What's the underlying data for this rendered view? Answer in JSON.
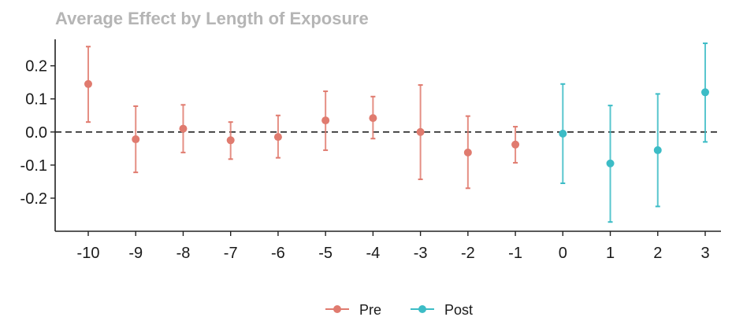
{
  "chart_data": {
    "type": "scatter",
    "title": "Average Effect by Length of Exposure",
    "xlabel": "",
    "ylabel": "",
    "ylim": [
      -0.3,
      0.28
    ],
    "y_ticks": [
      -0.2,
      -0.1,
      0.0,
      0.1,
      0.2
    ],
    "y_tick_labels": [
      "-0.2",
      "-0.1",
      "0.0",
      "0.1",
      "0.2"
    ],
    "x_ticks": [
      -10,
      -9,
      -8,
      -7,
      -6,
      -5,
      -4,
      -3,
      -2,
      -1,
      0,
      1,
      2,
      3
    ],
    "reference_line": 0.0,
    "grid": false,
    "legend_position": "bottom",
    "series": [
      {
        "name": "Pre",
        "color": "#e07b6f",
        "points": [
          {
            "x": -10,
            "y": 0.145,
            "lo": 0.03,
            "hi": 0.258
          },
          {
            "x": -9,
            "y": -0.022,
            "lo": -0.122,
            "hi": 0.078
          },
          {
            "x": -8,
            "y": 0.01,
            "lo": -0.062,
            "hi": 0.082
          },
          {
            "x": -7,
            "y": -0.025,
            "lo": -0.082,
            "hi": 0.03
          },
          {
            "x": -6,
            "y": -0.015,
            "lo": -0.078,
            "hi": 0.05
          },
          {
            "x": -5,
            "y": 0.035,
            "lo": -0.055,
            "hi": 0.123
          },
          {
            "x": -4,
            "y": 0.042,
            "lo": -0.02,
            "hi": 0.107
          },
          {
            "x": -3,
            "y": 0.0,
            "lo": -0.143,
            "hi": 0.142
          },
          {
            "x": -2,
            "y": -0.062,
            "lo": -0.17,
            "hi": 0.048
          },
          {
            "x": -1,
            "y": -0.038,
            "lo": -0.093,
            "hi": 0.016
          }
        ]
      },
      {
        "name": "Post",
        "color": "#3cbcc6",
        "points": [
          {
            "x": 0,
            "y": -0.005,
            "lo": -0.155,
            "hi": 0.145
          },
          {
            "x": 1,
            "y": -0.095,
            "lo": -0.272,
            "hi": 0.08
          },
          {
            "x": 2,
            "y": -0.055,
            "lo": -0.225,
            "hi": 0.115
          },
          {
            "x": 3,
            "y": 0.12,
            "lo": -0.03,
            "hi": 0.268
          }
        ]
      }
    ]
  }
}
